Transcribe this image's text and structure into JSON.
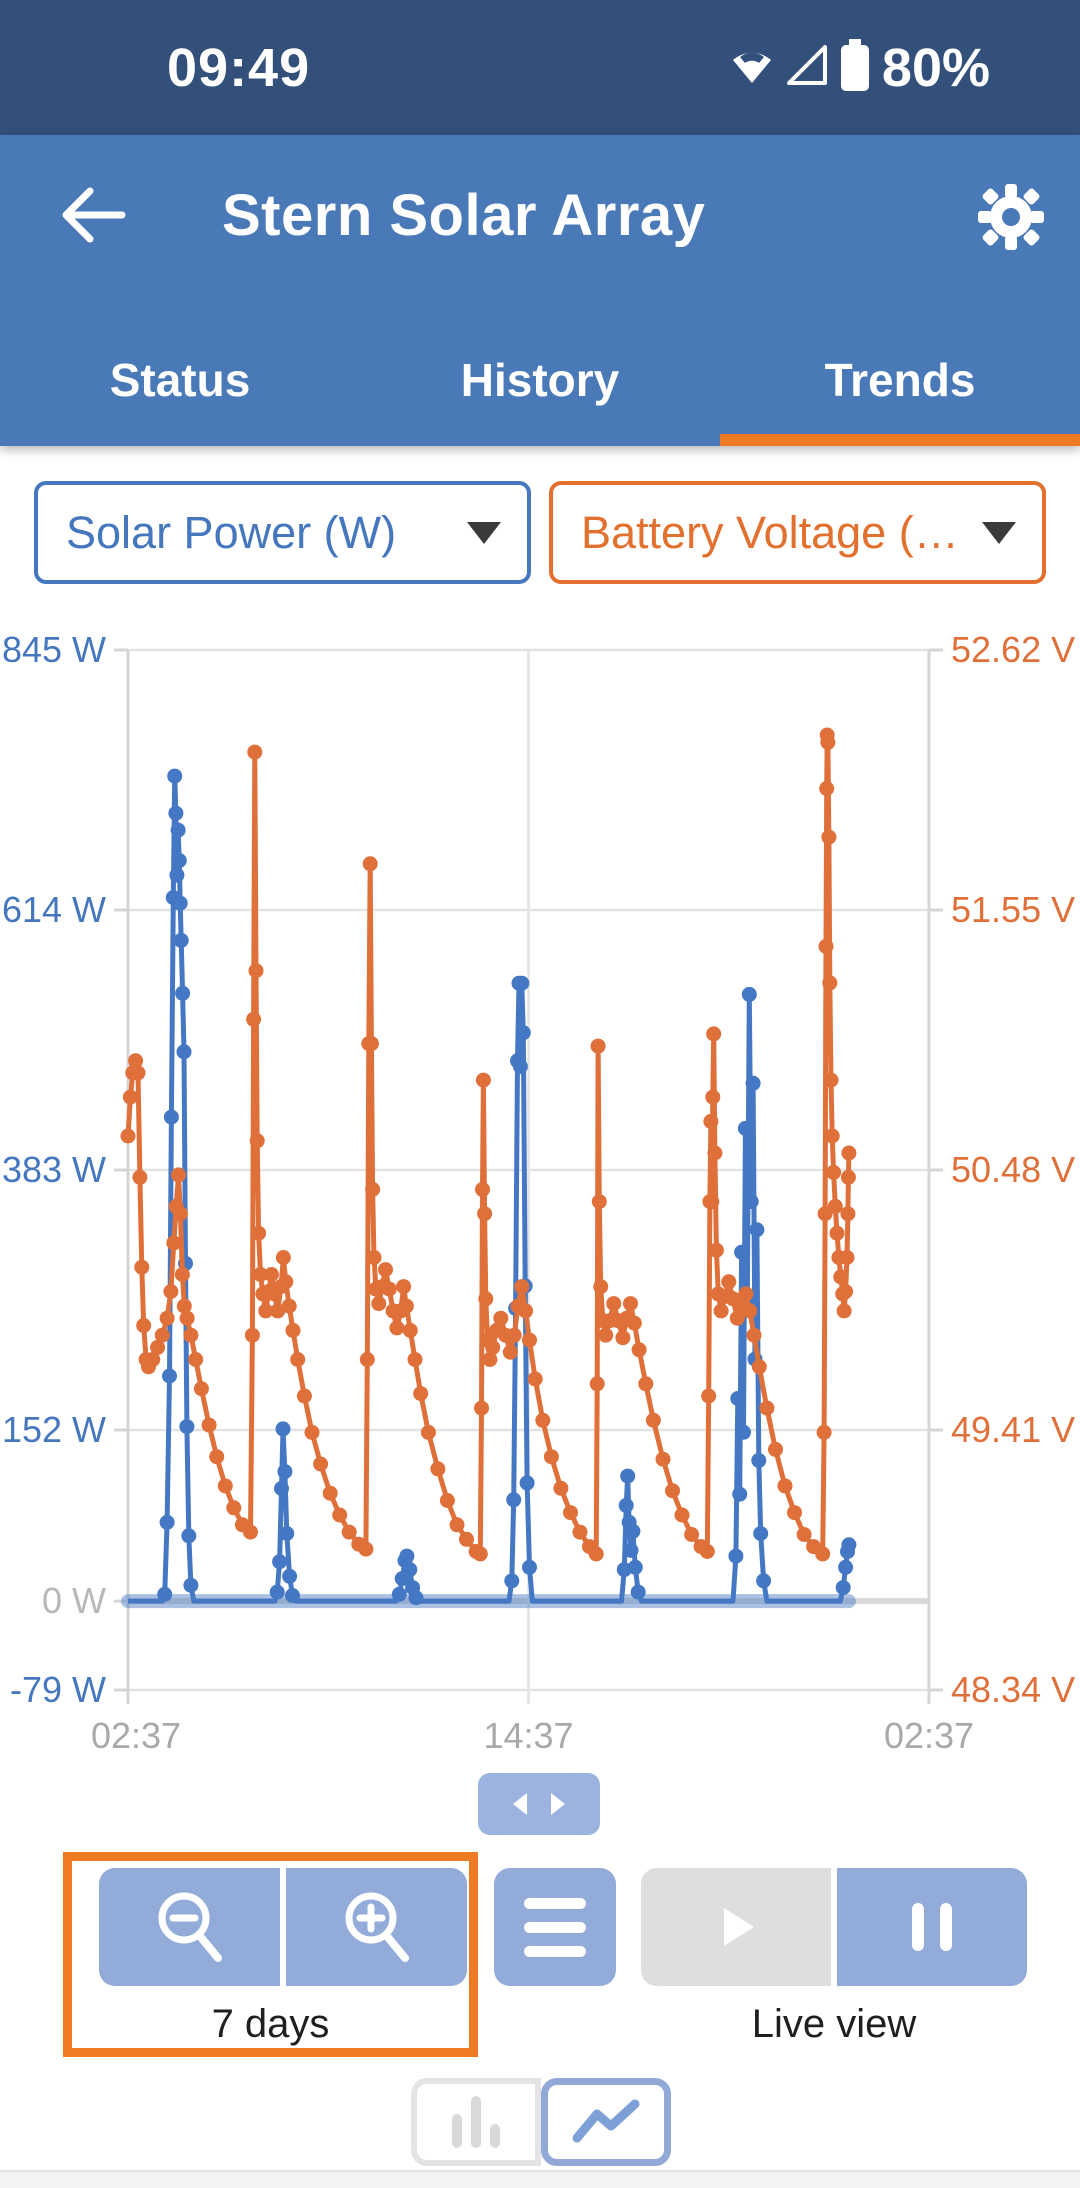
{
  "status_bar": {
    "time": "09:49",
    "battery_pct": "80%"
  },
  "header": {
    "title": "Stern Solar Array"
  },
  "tabs": [
    {
      "label": "Status",
      "active": false
    },
    {
      "label": "History",
      "active": false
    },
    {
      "label": "Trends",
      "active": true
    }
  ],
  "selectors": {
    "left": {
      "label": "Solar Power (W)",
      "color": "#4577BE"
    },
    "right": {
      "label": "Battery Voltage (…",
      "color": "#E2702E"
    }
  },
  "controls": {
    "zoom_range_label": "7 days",
    "live_label": "Live view"
  },
  "colors": {
    "status_bg": "#33507B",
    "appbar_bg": "#4A79B8",
    "accent_orange": "#EE7A23",
    "series_blue": "#4478C4",
    "series_orange": "#E0703A",
    "grid": "#E3E3E3",
    "zero_line": "#D9D9D9",
    "axis_line": "#D5D5D5",
    "x_label_gray": "#A9A9A9",
    "zero_label_gray": "#B8B8B8",
    "button_blue": "#93ABD9",
    "button_disabled": "#DEDEDE"
  },
  "chart_data": {
    "type": "line",
    "title": "",
    "x_axis": {
      "labels": [
        "02:37",
        "14:37",
        "02:37"
      ],
      "label_hours": [
        0,
        84,
        168
      ],
      "range_hours": [
        0,
        168
      ],
      "grid": true
    },
    "y_left": {
      "name": "Solar Power",
      "unit": "W",
      "color": "#4577BE",
      "ticks": [
        "845 W",
        "614 W",
        "383 W",
        "152 W",
        "0 W",
        "-79 W"
      ],
      "tick_values": [
        845,
        614,
        383,
        152,
        0,
        -79
      ],
      "range": [
        -79,
        845
      ]
    },
    "y_right": {
      "name": "Battery Voltage",
      "unit": "V",
      "color": "#E0703A",
      "ticks": [
        "52.62 V",
        "51.55 V",
        "50.48 V",
        "49.41 V",
        "48.34 V"
      ],
      "tick_values": [
        52.62,
        51.55,
        50.48,
        49.41,
        48.34
      ],
      "range": [
        48.34,
        52.62
      ]
    },
    "series": [
      {
        "name": "Solar Power (W)",
        "axis": "left",
        "color": "#4478C4",
        "zero_band": {
          "from": 0,
          "to": 151.2,
          "width": 14,
          "opacity": 0.45
        },
        "points": [
          [
            0,
            0
          ],
          [
            3,
            0
          ],
          [
            6,
            0
          ],
          [
            7.2,
            0
          ],
          [
            7.7,
            6
          ],
          [
            8.2,
            70
          ],
          [
            8.7,
            200
          ],
          [
            9.1,
            430
          ],
          [
            9.5,
            625
          ],
          [
            9.8,
            733
          ],
          [
            10.05,
            700
          ],
          [
            10.25,
            645
          ],
          [
            10.5,
            685
          ],
          [
            10.75,
            658
          ],
          [
            10.95,
            620
          ],
          [
            11.15,
            587
          ],
          [
            11.45,
            540
          ],
          [
            11.75,
            488
          ],
          [
            12.05,
            300
          ],
          [
            12.35,
            155
          ],
          [
            12.75,
            58
          ],
          [
            13.2,
            14
          ],
          [
            13.8,
            0
          ],
          [
            16,
            0
          ],
          [
            20,
            0
          ],
          [
            24,
            0
          ],
          [
            28,
            0
          ],
          [
            30.8,
            0
          ],
          [
            31.3,
            8
          ],
          [
            31.8,
            35
          ],
          [
            32.2,
            100
          ],
          [
            32.5,
            153
          ],
          [
            32.9,
            115
          ],
          [
            33.3,
            60
          ],
          [
            33.9,
            22
          ],
          [
            34.5,
            5
          ],
          [
            35.2,
            0
          ],
          [
            40,
            0
          ],
          [
            46,
            0
          ],
          [
            52,
            0
          ],
          [
            56.2,
            0
          ],
          [
            56.9,
            6
          ],
          [
            57.5,
            20
          ],
          [
            58.1,
            36
          ],
          [
            58.5,
            40
          ],
          [
            59.1,
            28
          ],
          [
            59.7,
            12
          ],
          [
            60.4,
            3
          ],
          [
            61.2,
            0
          ],
          [
            66,
            0
          ],
          [
            72,
            0
          ],
          [
            78,
            0
          ],
          [
            79.9,
            0
          ],
          [
            80.5,
            18
          ],
          [
            80.9,
            90
          ],
          [
            81.3,
            260
          ],
          [
            81.7,
            480
          ],
          [
            82,
            549
          ],
          [
            82.3,
            475
          ],
          [
            82.6,
            549
          ],
          [
            82.9,
            505
          ],
          [
            83.3,
            280
          ],
          [
            83.7,
            105
          ],
          [
            84.2,
            30
          ],
          [
            84.8,
            0
          ],
          [
            90,
            0
          ],
          [
            96,
            0
          ],
          [
            102,
            0
          ],
          [
            103.5,
            0
          ],
          [
            104.1,
            28
          ],
          [
            104.5,
            85
          ],
          [
            104.8,
            111
          ],
          [
            105.1,
            70
          ],
          [
            105.5,
            45
          ],
          [
            105.9,
            62
          ],
          [
            106.4,
            30
          ],
          [
            107,
            8
          ],
          [
            107.7,
            0
          ],
          [
            112,
            0
          ],
          [
            118,
            0
          ],
          [
            124,
            0
          ],
          [
            126.9,
            0
          ],
          [
            127.5,
            40
          ],
          [
            127.9,
            180
          ],
          [
            128.3,
            95
          ],
          [
            128.7,
            310
          ],
          [
            129.1,
            150
          ],
          [
            129.5,
            420
          ],
          [
            129.9,
            265
          ],
          [
            130.3,
            539
          ],
          [
            130.7,
            355
          ],
          [
            131.1,
            460
          ],
          [
            131.5,
            215
          ],
          [
            131.9,
            330
          ],
          [
            132.3,
            125
          ],
          [
            132.7,
            60
          ],
          [
            133.3,
            18
          ],
          [
            134,
            0
          ],
          [
            139,
            0
          ],
          [
            145,
            0
          ],
          [
            149.4,
            0
          ],
          [
            150,
            12
          ],
          [
            150.5,
            30
          ],
          [
            150.9,
            44
          ],
          [
            151.2,
            50
          ]
        ]
      },
      {
        "name": "Battery Voltage (V)",
        "axis": "right",
        "color": "#E0703A",
        "points": [
          [
            0,
            50.62
          ],
          [
            0.5,
            50.78
          ],
          [
            1,
            50.88
          ],
          [
            1.6,
            50.93
          ],
          [
            2.1,
            50.88
          ],
          [
            2.5,
            50.45
          ],
          [
            2.9,
            50.08
          ],
          [
            3.3,
            49.84
          ],
          [
            3.8,
            49.7
          ],
          [
            4.3,
            49.67
          ],
          [
            5.2,
            49.7
          ],
          [
            6.2,
            49.75
          ],
          [
            7.2,
            49.8
          ],
          [
            8.2,
            49.87
          ],
          [
            9,
            49.98
          ],
          [
            9.6,
            50.18
          ],
          [
            10.1,
            50.33
          ],
          [
            10.6,
            50.46
          ],
          [
            11,
            50.3
          ],
          [
            11.4,
            50.05
          ],
          [
            11.8,
            49.92
          ],
          [
            12.4,
            49.87
          ],
          [
            13.2,
            49.8
          ],
          [
            14.2,
            49.7
          ],
          [
            15.4,
            49.58
          ],
          [
            17,
            49.43
          ],
          [
            18.6,
            49.3
          ],
          [
            20.4,
            49.18
          ],
          [
            22.2,
            49.09
          ],
          [
            24,
            49.02
          ],
          [
            25.7,
            48.99
          ],
          [
            26.1,
            49.8
          ],
          [
            26.35,
            51.1
          ],
          [
            26.6,
            52.2
          ],
          [
            26.85,
            51.3
          ],
          [
            27.1,
            50.6
          ],
          [
            27.4,
            50.22
          ],
          [
            27.8,
            50.05
          ],
          [
            28.3,
            49.97
          ],
          [
            28.9,
            49.9
          ],
          [
            29.5,
            49.98
          ],
          [
            30.1,
            50.05
          ],
          [
            30.7,
            49.97
          ],
          [
            31.4,
            49.9
          ],
          [
            32.1,
            50.0
          ],
          [
            32.6,
            50.12
          ],
          [
            33.1,
            50.02
          ],
          [
            33.8,
            49.92
          ],
          [
            34.6,
            49.82
          ],
          [
            35.6,
            49.7
          ],
          [
            37,
            49.55
          ],
          [
            38.6,
            49.4
          ],
          [
            40.4,
            49.27
          ],
          [
            42.4,
            49.15
          ],
          [
            44.4,
            49.06
          ],
          [
            46.4,
            48.99
          ],
          [
            48.4,
            48.94
          ],
          [
            49.9,
            48.92
          ],
          [
            50.2,
            49.7
          ],
          [
            50.5,
            51.0
          ],
          [
            50.8,
            51.74
          ],
          [
            51.05,
            51.0
          ],
          [
            51.3,
            50.4
          ],
          [
            51.6,
            50.12
          ],
          [
            52,
            49.99
          ],
          [
            52.6,
            49.93
          ],
          [
            53.3,
            50.0
          ],
          [
            54,
            50.07
          ],
          [
            54.8,
            49.99
          ],
          [
            55.6,
            49.9
          ],
          [
            56.4,
            49.83
          ],
          [
            57.2,
            49.9
          ],
          [
            57.8,
            50.0
          ],
          [
            58.4,
            49.92
          ],
          [
            59.2,
            49.82
          ],
          [
            60.2,
            49.7
          ],
          [
            61.4,
            49.56
          ],
          [
            63,
            49.4
          ],
          [
            65,
            49.25
          ],
          [
            67,
            49.12
          ],
          [
            69,
            49.02
          ],
          [
            71,
            48.96
          ],
          [
            73,
            48.91
          ],
          [
            73.9,
            48.9
          ],
          [
            74.15,
            49.5
          ],
          [
            74.35,
            50.4
          ],
          [
            74.55,
            50.85
          ],
          [
            74.8,
            50.3
          ],
          [
            75.05,
            49.95
          ],
          [
            75.4,
            49.78
          ],
          [
            75.9,
            49.7
          ],
          [
            76.5,
            49.75
          ],
          [
            77.3,
            49.82
          ],
          [
            78.2,
            49.87
          ],
          [
            79.2,
            49.8
          ],
          [
            80.2,
            49.73
          ],
          [
            81,
            49.8
          ],
          [
            81.8,
            49.92
          ],
          [
            82.6,
            50.0
          ],
          [
            83.4,
            49.9
          ],
          [
            84.2,
            49.78
          ],
          [
            85.4,
            49.62
          ],
          [
            87,
            49.45
          ],
          [
            88.8,
            49.3
          ],
          [
            90.8,
            49.17
          ],
          [
            92.8,
            49.07
          ],
          [
            94.8,
            48.99
          ],
          [
            96.8,
            48.93
          ],
          [
            98.2,
            48.9
          ],
          [
            98.4,
            49.6
          ],
          [
            98.6,
            50.99
          ],
          [
            98.85,
            50.35
          ],
          [
            99.15,
            50.0
          ],
          [
            99.6,
            49.86
          ],
          [
            100.2,
            49.8
          ],
          [
            101,
            49.86
          ],
          [
            101.9,
            49.93
          ],
          [
            102.8,
            49.86
          ],
          [
            103.8,
            49.79
          ],
          [
            104.6,
            49.87
          ],
          [
            105.4,
            49.93
          ],
          [
            106.2,
            49.85
          ],
          [
            107.2,
            49.74
          ],
          [
            108.6,
            49.6
          ],
          [
            110.2,
            49.45
          ],
          [
            112.2,
            49.29
          ],
          [
            114.2,
            49.16
          ],
          [
            116.2,
            49.06
          ],
          [
            118.2,
            48.98
          ],
          [
            120.2,
            48.93
          ],
          [
            121.5,
            48.91
          ],
          [
            121.8,
            49.55
          ],
          [
            122.05,
            50.35
          ],
          [
            122.25,
            50.68
          ],
          [
            122.45,
            50.35
          ],
          [
            122.65,
            50.78
          ],
          [
            122.85,
            51.04
          ],
          [
            123.1,
            50.55
          ],
          [
            123.4,
            50.15
          ],
          [
            123.8,
            49.97
          ],
          [
            124.4,
            49.9
          ],
          [
            125.2,
            49.96
          ],
          [
            126,
            50.02
          ],
          [
            126.9,
            49.95
          ],
          [
            127.8,
            49.87
          ],
          [
            128.7,
            49.92
          ],
          [
            129.6,
            49.97
          ],
          [
            130.4,
            49.9
          ],
          [
            131.3,
            49.8
          ],
          [
            132.4,
            49.67
          ],
          [
            134,
            49.5
          ],
          [
            135.8,
            49.33
          ],
          [
            137.8,
            49.18
          ],
          [
            139.8,
            49.07
          ],
          [
            141.8,
            48.98
          ],
          [
            143.8,
            48.93
          ],
          [
            145.7,
            48.9
          ],
          [
            146,
            49.4
          ],
          [
            146.2,
            50.3
          ],
          [
            146.4,
            51.4
          ],
          [
            146.55,
            52.05
          ],
          [
            146.65,
            52.27
          ],
          [
            146.8,
            52.24
          ],
          [
            147,
            51.85
          ],
          [
            147.2,
            51.25
          ],
          [
            147.45,
            50.85
          ],
          [
            147.7,
            50.62
          ],
          [
            148,
            50.47
          ],
          [
            148.35,
            50.33
          ],
          [
            148.7,
            50.22
          ],
          [
            149.1,
            50.12
          ],
          [
            149.5,
            50.04
          ],
          [
            149.9,
            49.97
          ],
          [
            150.2,
            49.9
          ],
          [
            150.5,
            49.98
          ],
          [
            150.8,
            50.12
          ],
          [
            151,
            50.3
          ],
          [
            151.1,
            50.45
          ],
          [
            151.2,
            50.55
          ]
        ]
      }
    ]
  }
}
